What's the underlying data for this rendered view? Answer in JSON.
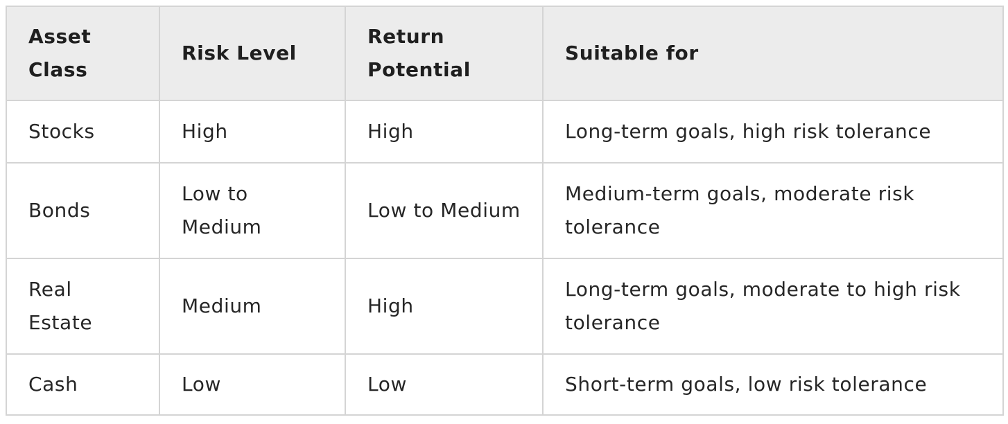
{
  "table": {
    "headers": [
      "Asset Class",
      "Risk Level",
      "Return Potential",
      "Suitable for"
    ],
    "rows": [
      [
        "Stocks",
        "High",
        "High",
        "Long-term goals, high risk tolerance"
      ],
      [
        "Bonds",
        "Low to Medium",
        "Low to Medium",
        "Medium-term goals, moderate risk tolerance"
      ],
      [
        "Real Estate",
        "Medium",
        "High",
        "Long-term goals, moderate to high risk tolerance"
      ],
      [
        "Cash",
        "Low",
        "Low",
        "Short-term goals, low risk tolerance"
      ]
    ]
  },
  "colors": {
    "header_background": "#ececec",
    "border": "#d4d4d4",
    "text": "#222222"
  }
}
